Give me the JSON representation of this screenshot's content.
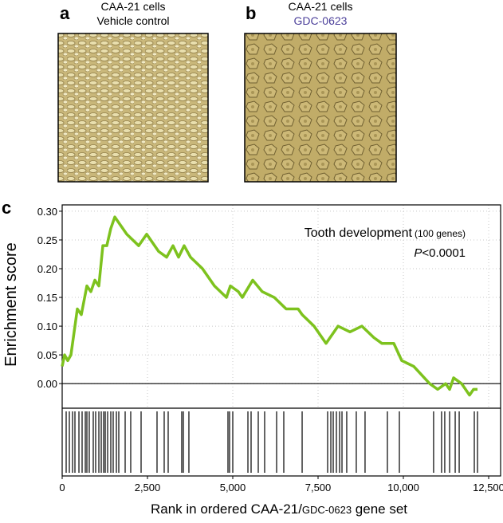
{
  "panels": [
    {
      "label": "a",
      "lines": [
        "CAA-21 cells",
        "Vehicle control"
      ]
    },
    {
      "label": "b",
      "lines": [
        "CAA-21 cells",
        "GDC-0623"
      ]
    }
  ],
  "chart_data": {
    "type": "line",
    "panel_label": "c",
    "ylabel": "Enrichment score",
    "xlabel_parts": [
      "Rank in ordered CAA-21/",
      "GDC-0623",
      " gene set"
    ],
    "annotation": {
      "title": "Tooth development",
      "genes": "(100 genes)",
      "p_italic": "P",
      "p_rest": "<0.0001"
    },
    "x": [
      0,
      70,
      164,
      257,
      374,
      444,
      561,
      724,
      841,
      958,
      1075,
      1192,
      1308,
      1425,
      1542,
      1659,
      1893,
      2243,
      2477,
      2827,
      3061,
      3248,
      3411,
      3575,
      3762,
      4112,
      4463,
      4813,
      4930,
      5164,
      5280,
      5584,
      5864,
      6215,
      6565,
      6916,
      7033,
      7383,
      7734,
      8084,
      8435,
      8785,
      9136,
      9369,
      9720,
      9953,
      10304,
      10771,
      11005,
      11238,
      11355,
      11472,
      11706,
      11939,
      12056,
      12173
    ],
    "series": [
      {
        "name": "Tooth development",
        "color": "#7dc21e",
        "values": [
          0.03,
          0.05,
          0.04,
          0.05,
          0.1,
          0.13,
          0.12,
          0.17,
          0.16,
          0.18,
          0.17,
          0.24,
          0.24,
          0.27,
          0.29,
          0.28,
          0.26,
          0.24,
          0.26,
          0.23,
          0.22,
          0.24,
          0.22,
          0.24,
          0.22,
          0.2,
          0.17,
          0.15,
          0.17,
          0.16,
          0.15,
          0.18,
          0.16,
          0.15,
          0.13,
          0.13,
          0.12,
          0.1,
          0.07,
          0.1,
          0.09,
          0.1,
          0.08,
          0.07,
          0.07,
          0.04,
          0.03,
          0.0,
          -0.01,
          0.0,
          -0.01,
          0.01,
          0.0,
          -0.02,
          -0.01,
          -0.01
        ]
      }
    ],
    "hits": [
      117,
      210,
      304,
      374,
      491,
      584,
      678,
      724,
      794,
      911,
      981,
      1075,
      1145,
      1215,
      1262,
      1332,
      1425,
      1495,
      1589,
      1659,
      1846,
      2009,
      2313,
      2780,
      2990,
      3107,
      3504,
      3551,
      3714,
      4859,
      4906,
      5000,
      5444,
      5537,
      5747,
      5934,
      6285,
      6495,
      7033,
      7780,
      7874,
      7944,
      8037,
      8131,
      8201,
      8340,
      8620,
      8877,
      9532,
      9883,
      10886,
      11120,
      11213,
      11355,
      11519,
      11636,
      12079,
      12173
    ],
    "xlim": [
      0,
      12850
    ],
    "ylim": [
      -0.04,
      0.311
    ],
    "xticks": [
      0,
      {
        "value": 2500,
        "label": "2,500"
      },
      {
        "value": 5000,
        "label": "5,000"
      },
      {
        "value": 7500,
        "label": "7,500"
      },
      {
        "value": 10000,
        "label": "10,000"
      },
      {
        "value": 12500,
        "label": "12,500"
      }
    ],
    "yticks": [
      {
        "value": 0,
        "label": "0.00"
      },
      {
        "value": 0.05,
        "label": "0.05"
      },
      {
        "value": 0.1,
        "label": "0.10"
      },
      {
        "value": 0.15,
        "label": "0.15"
      },
      {
        "value": 0.2,
        "label": "0.20"
      },
      {
        "value": 0.25,
        "label": "0.25"
      },
      {
        "value": 0.3,
        "label": "0.30"
      }
    ],
    "grid": true
  }
}
